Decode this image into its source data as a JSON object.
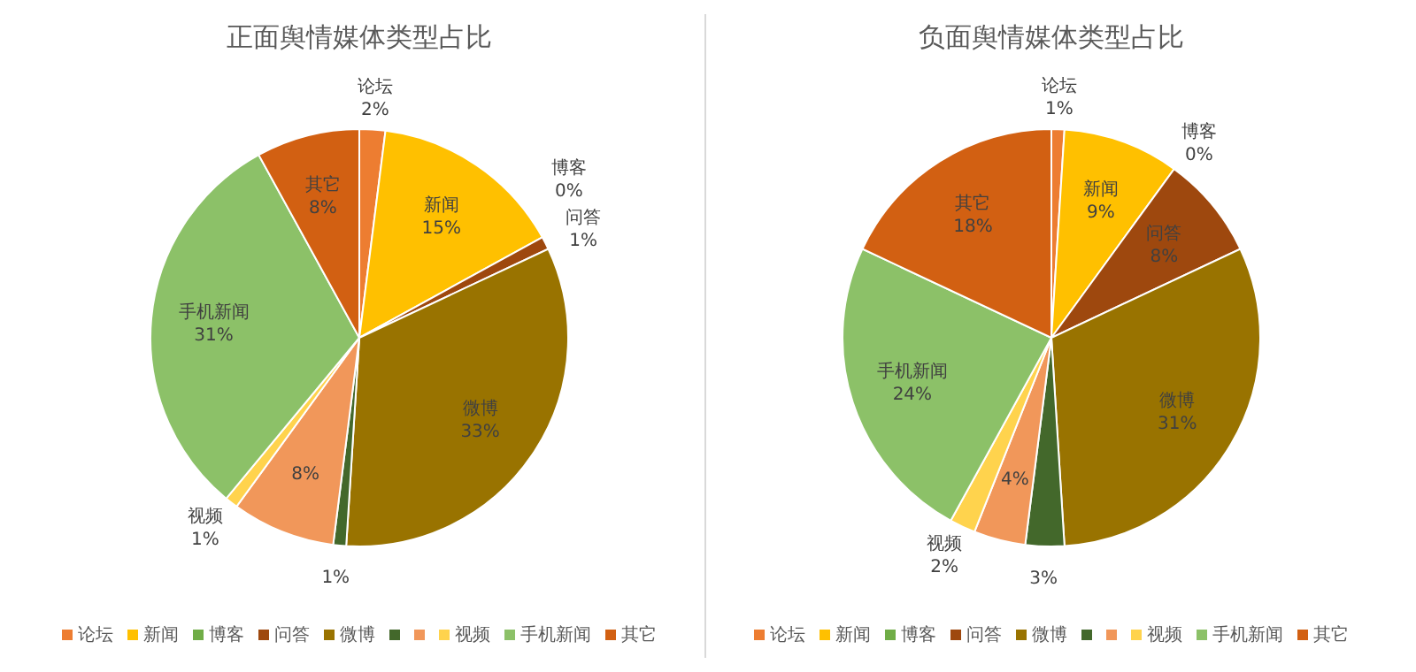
{
  "chart_data": [
    {
      "type": "pie",
      "title": "正面舆情媒体类型占比",
      "categories": [
        "论坛",
        "新闻",
        "博客",
        "问答",
        "微博",
        null,
        null,
        "视频",
        "手机新闻",
        "其它"
      ],
      "values": [
        2,
        15,
        0,
        1,
        33,
        1,
        8,
        1,
        31,
        8
      ],
      "value_labels": [
        "2%",
        "15%",
        "0%",
        "1%",
        "33%",
        "1%",
        "8%",
        "1%",
        "31%",
        "8%"
      ],
      "colors": [
        "#ed7d31",
        "#ffc000",
        "#70ad47",
        "#9e480e",
        "#997300",
        "#43682b",
        "#f1975a",
        "#ffd34d",
        "#8cc168",
        "#d26012"
      ],
      "legend": "bottom"
    },
    {
      "type": "pie",
      "title": "负面舆情媒体类型占比",
      "categories": [
        "论坛",
        "新闻",
        "博客",
        "问答",
        "微博",
        null,
        null,
        "视频",
        "手机新闻",
        "其它"
      ],
      "values": [
        1,
        9,
        0,
        8,
        31,
        3,
        4,
        2,
        24,
        18
      ],
      "value_labels": [
        "1%",
        "9%",
        "0%",
        "8%",
        "31%",
        "3%",
        "4%",
        "2%",
        "24%",
        "18%"
      ],
      "colors": [
        "#ed7d31",
        "#ffc000",
        "#70ad47",
        "#9e480e",
        "#997300",
        "#43682b",
        "#f1975a",
        "#ffd34d",
        "#8cc168",
        "#d26012"
      ],
      "legend": "bottom"
    }
  ]
}
